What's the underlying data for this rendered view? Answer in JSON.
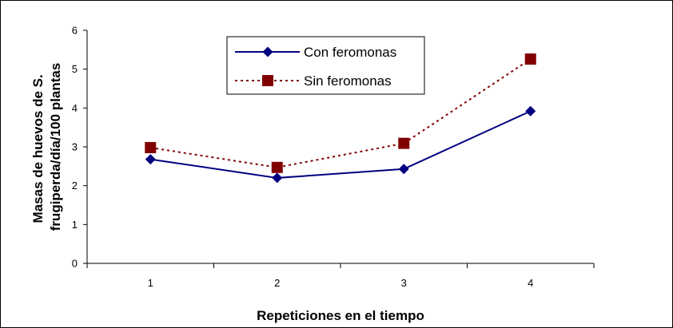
{
  "chart_data": {
    "type": "line",
    "title": "",
    "xlabel": "Repeticiones en el tiempo",
    "ylabel": [
      "Masas de huevos de S.",
      "frugiperda/día/100 plantas"
    ],
    "categories": [
      "1",
      "2",
      "3",
      "4"
    ],
    "ylim": [
      0,
      6
    ],
    "yticks": [
      0,
      1,
      2,
      3,
      4,
      5,
      6
    ],
    "grid": false,
    "legend_position": "top-center",
    "series": [
      {
        "name": "Con feromonas",
        "values": [
          2.68,
          2.2,
          2.43,
          3.92
        ],
        "color": "#000080",
        "line_style": "solid",
        "marker": "diamond"
      },
      {
        "name": "Sin feromonas",
        "values": [
          2.98,
          2.47,
          3.09,
          5.26
        ],
        "color": "#800000",
        "line_style": "dotted",
        "marker": "square"
      }
    ]
  }
}
